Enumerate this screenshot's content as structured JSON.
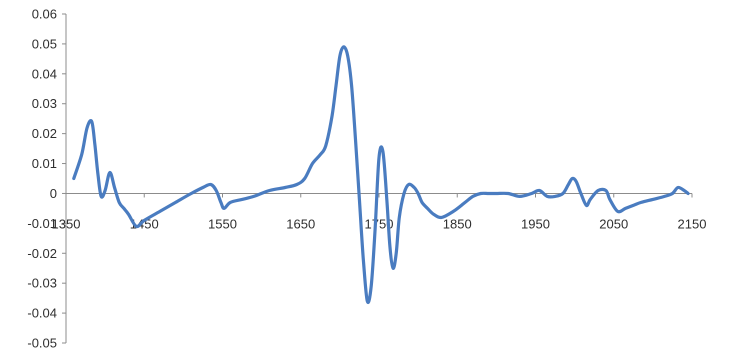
{
  "chart_data": {
    "type": "line",
    "title": "",
    "xlabel": "",
    "ylabel": "",
    "xlim": [
      1350,
      2150
    ],
    "ylim": [
      -0.05,
      0.06
    ],
    "grid": false,
    "legend": "none",
    "x_tick_labels": [
      "1350",
      "1450",
      "1550",
      "1650",
      "1750",
      "1850",
      "1950",
      "2050",
      "2150"
    ],
    "x_tick_values": [
      1350,
      1450,
      1550,
      1650,
      1750,
      1850,
      1950,
      2050,
      2150
    ],
    "y_tick_labels": [
      "0.06",
      "0.05",
      "0.04",
      "0.03",
      "0.02",
      "0.01",
      "0",
      "-0.01",
      "-0.02",
      "-0.03",
      "-0.04",
      "-0.05"
    ],
    "y_tick_values": [
      0.06,
      0.05,
      0.04,
      0.03,
      0.02,
      0.01,
      0,
      -0.01,
      -0.02,
      -0.03,
      -0.04,
      -0.05
    ],
    "series": [
      {
        "color": "#4a7cc0",
        "x": [
          1360,
          1370,
          1377,
          1383,
          1387,
          1391,
          1395,
          1400,
          1406,
          1412,
          1418,
          1424,
          1430,
          1440,
          1450,
          1470,
          1490,
          1510,
          1525,
          1535,
          1542,
          1548,
          1552,
          1560,
          1575,
          1590,
          1610,
          1630,
          1645,
          1655,
          1665,
          1675,
          1682,
          1690,
          1695,
          1700,
          1705,
          1710,
          1715,
          1720,
          1725,
          1730,
          1735,
          1740,
          1745,
          1750,
          1755,
          1760,
          1764,
          1768,
          1772,
          1776,
          1782,
          1788,
          1795,
          1800,
          1805,
          1812,
          1820,
          1830,
          1845,
          1860,
          1870,
          1880,
          1890,
          1900,
          1915,
          1930,
          1945,
          1955,
          1965,
          1975,
          1985,
          1992,
          1997,
          2002,
          2008,
          2015,
          2020,
          2030,
          2040,
          2045,
          2055,
          2065,
          2075,
          2085,
          2100,
          2115,
          2125,
          2132,
          2140,
          2145
        ],
        "values": [
          0.005,
          0.013,
          0.022,
          0.024,
          0.016,
          0.006,
          -0.001,
          0.001,
          0.007,
          0.002,
          -0.003,
          -0.005,
          -0.007,
          -0.011,
          -0.009,
          -0.006,
          -0.003,
          0.0,
          0.002,
          0.003,
          0.001,
          -0.003,
          -0.005,
          -0.003,
          -0.002,
          -0.001,
          0.001,
          0.002,
          0.003,
          0.005,
          0.01,
          0.013,
          0.016,
          0.026,
          0.036,
          0.046,
          0.049,
          0.046,
          0.036,
          0.018,
          -0.002,
          -0.022,
          -0.036,
          -0.031,
          -0.012,
          0.012,
          0.014,
          -0.002,
          -0.018,
          -0.025,
          -0.02,
          -0.008,
          0.0,
          0.003,
          0.002,
          0.0,
          -0.003,
          -0.005,
          -0.007,
          -0.008,
          -0.006,
          -0.003,
          -0.001,
          0.0,
          0.0,
          0.0,
          0.0,
          -0.001,
          0.0,
          0.001,
          -0.001,
          -0.001,
          0.0,
          0.003,
          0.005,
          0.004,
          0.0,
          -0.004,
          -0.002,
          0.001,
          0.001,
          -0.002,
          -0.006,
          -0.005,
          -0.004,
          -0.003,
          -0.002,
          -0.001,
          0.0,
          0.002,
          0.001,
          0.0
        ]
      }
    ]
  }
}
